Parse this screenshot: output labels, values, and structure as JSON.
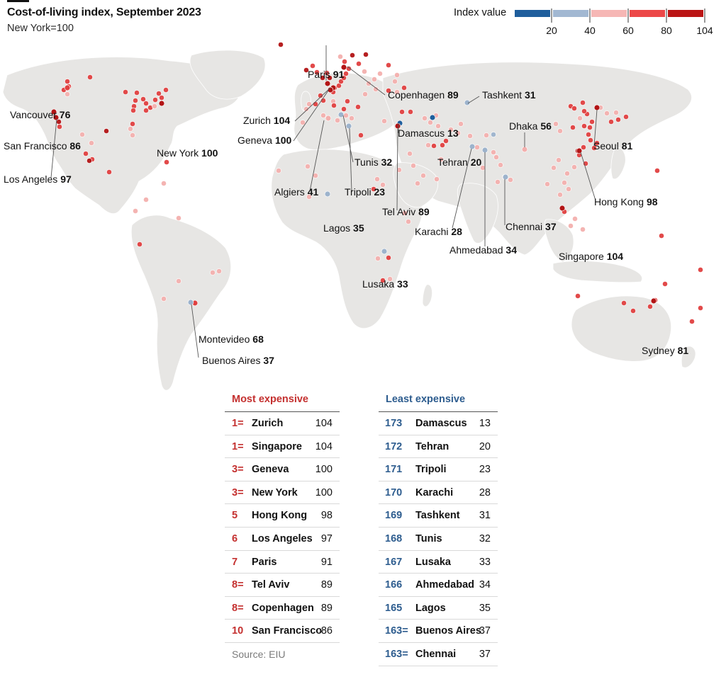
{
  "title": "Cost-of-living index, September 2023",
  "subtitle": "New York=100",
  "legend": {
    "title": "Index value",
    "ticks": [
      "20",
      "40",
      "60",
      "80",
      "104"
    ],
    "colors": [
      "#1f5e9c",
      "#a2b8d2",
      "#f6b7b5",
      "#ec4848",
      "#bb1515"
    ]
  },
  "colors": {
    "land": "#e7e6e4",
    "border": "#ffffff",
    "dot_blue": "#1f5e9c",
    "dot_lightblue": "#9db3cc",
    "dot_pink": "#f3b0ae",
    "dot_red": "#e04040",
    "dot_darkred": "#b21415"
  },
  "chart_data": {
    "type": "scatter",
    "map": "world",
    "color_scale": {
      "breaks": [
        20,
        40,
        60,
        80,
        104
      ]
    },
    "labelled_cities": [
      {
        "name": "Paris",
        "value": 91
      },
      {
        "name": "Copenhagen",
        "value": 89
      },
      {
        "name": "Tashkent",
        "value": 31
      },
      {
        "name": "Zurich",
        "value": 104
      },
      {
        "name": "Damascus",
        "value": 13
      },
      {
        "name": "Dhaka",
        "value": 56
      },
      {
        "name": "Geneva",
        "value": 100
      },
      {
        "name": "Tehran",
        "value": 20
      },
      {
        "name": "Tunis",
        "value": 32
      },
      {
        "name": "Seoul",
        "value": 81
      },
      {
        "name": "Algiers",
        "value": 41
      },
      {
        "name": "Tripoli",
        "value": 23
      },
      {
        "name": "Tel Aviv",
        "value": 89
      },
      {
        "name": "Karachi",
        "value": 28
      },
      {
        "name": "Hong Kong",
        "value": 98
      },
      {
        "name": "Lagos",
        "value": 35
      },
      {
        "name": "Chennai",
        "value": 37
      },
      {
        "name": "Ahmedabad",
        "value": 34
      },
      {
        "name": "Singapore",
        "value": 104
      },
      {
        "name": "Lusaka",
        "value": 33
      },
      {
        "name": "Vancouver",
        "value": 76
      },
      {
        "name": "San Francisco",
        "value": 86
      },
      {
        "name": "New York",
        "value": 100
      },
      {
        "name": "Los Angeles",
        "value": 97
      },
      {
        "name": "Montevideo",
        "value": 68
      },
      {
        "name": "Buenos Aires",
        "value": 37
      },
      {
        "name": "Sydney",
        "value": 81
      }
    ]
  },
  "most_expensive": {
    "heading": "Most expensive",
    "rows": [
      {
        "rank": "1=",
        "city": "Zurich",
        "value": "104"
      },
      {
        "rank": "1=",
        "city": "Singapore",
        "value": "104"
      },
      {
        "rank": "3=",
        "city": "Geneva",
        "value": "100"
      },
      {
        "rank": "3=",
        "city": "New York",
        "value": "100"
      },
      {
        "rank": "5",
        "city": "Hong Kong",
        "value": "98"
      },
      {
        "rank": "6",
        "city": "Los Angeles",
        "value": "97"
      },
      {
        "rank": "7",
        "city": "Paris",
        "value": "91"
      },
      {
        "rank": "8=",
        "city": "Tel Aviv",
        "value": "89"
      },
      {
        "rank": "8=",
        "city": "Copenhagen",
        "value": "89"
      },
      {
        "rank": "10",
        "city": "San Francisco",
        "value": "86"
      }
    ]
  },
  "least_expensive": {
    "heading": "Least expensive",
    "rows": [
      {
        "rank": "173",
        "city": "Damascus",
        "value": "13"
      },
      {
        "rank": "172",
        "city": "Tehran",
        "value": "20"
      },
      {
        "rank": "171",
        "city": "Tripoli",
        "value": "23"
      },
      {
        "rank": "170",
        "city": "Karachi",
        "value": "28"
      },
      {
        "rank": "169",
        "city": "Tashkent",
        "value": "31"
      },
      {
        "rank": "168",
        "city": "Tunis",
        "value": "32"
      },
      {
        "rank": "167",
        "city": "Lusaka",
        "value": "33"
      },
      {
        "rank": "166",
        "city": "Ahmedabad",
        "value": "34"
      },
      {
        "rank": "165",
        "city": "Lagos",
        "value": "35"
      },
      {
        "rank": "163=",
        "city": "Buenos Aires",
        "value": "37"
      },
      {
        "rank": "163=",
        "city": "Chennai",
        "value": "37"
      }
    ]
  },
  "source": "Source: EIU"
}
